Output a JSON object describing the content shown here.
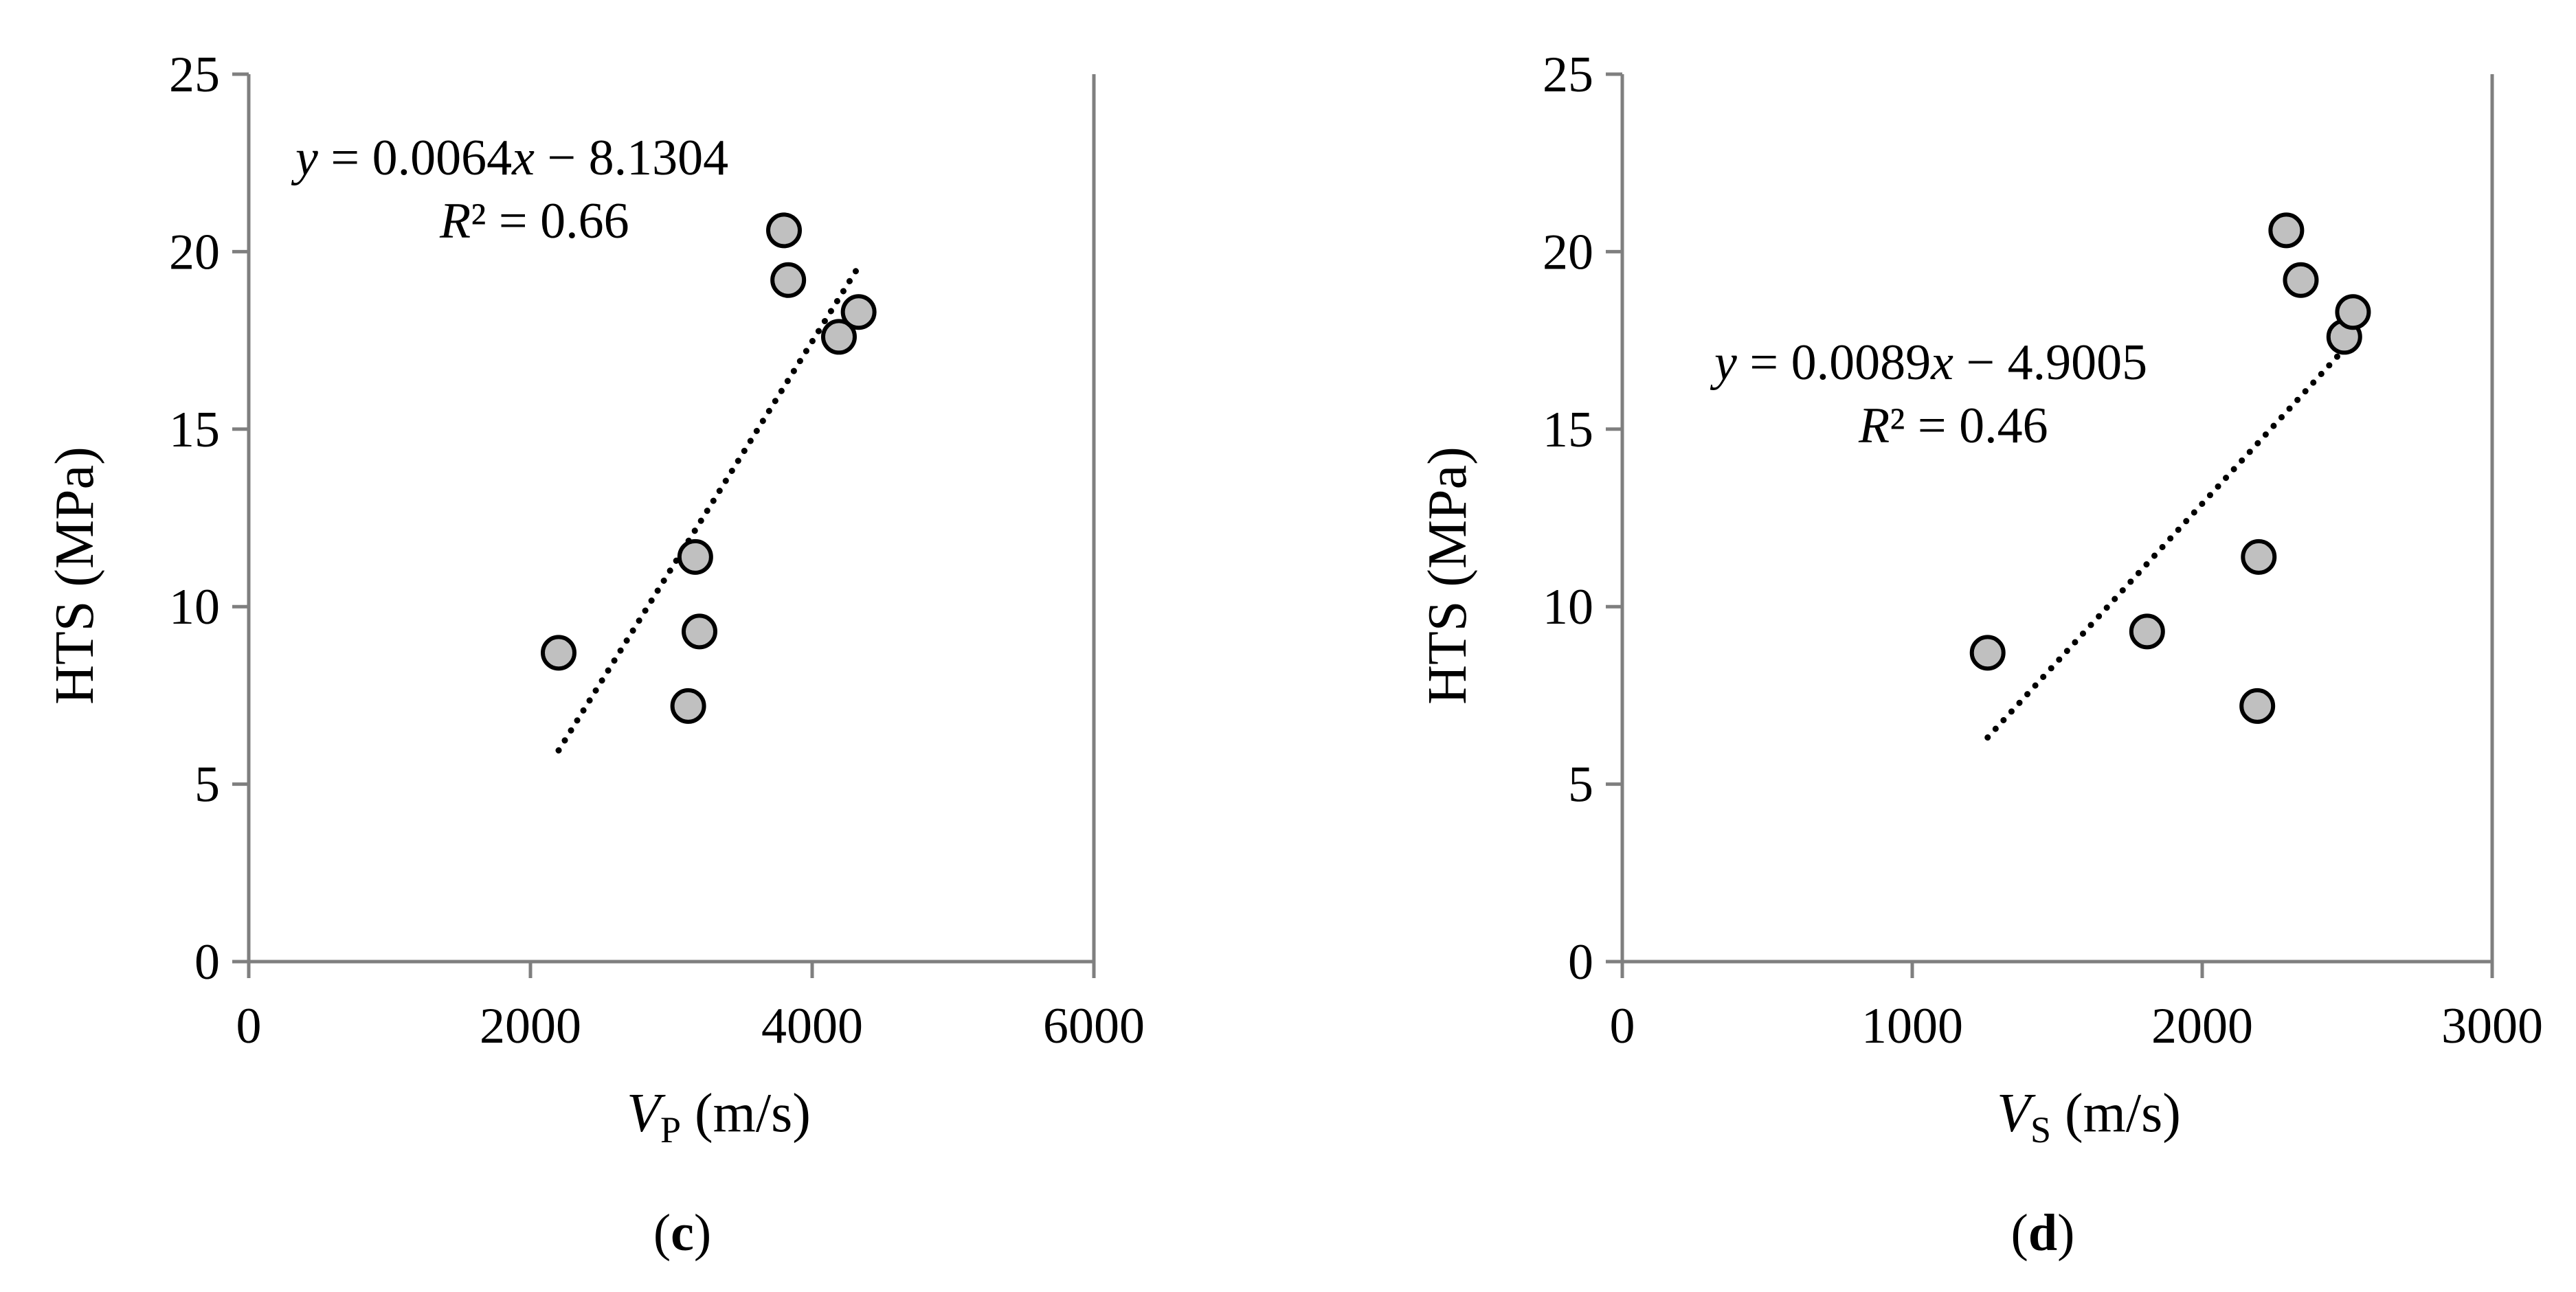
{
  "chart_data": [
    {
      "type": "scatter",
      "panel_label": "c",
      "xlabel": {
        "var": "V",
        "sub": "P",
        "unit": " (m/s)"
      },
      "ylabel": "HTS (MPa)",
      "xlim": [
        0,
        6000
      ],
      "ylim": [
        0,
        25
      ],
      "xticks": [
        "0",
        "2000",
        "4000",
        "6000"
      ],
      "yticks": [
        "0",
        "5",
        "10",
        "15",
        "20",
        "25"
      ],
      "x_tick_values": [
        0,
        2000,
        4000,
        6000
      ],
      "y_tick_values": [
        0,
        5,
        10,
        15,
        20,
        25
      ],
      "points": [
        {
          "x": 2200,
          "y": 8.7
        },
        {
          "x": 3120,
          "y": 7.2
        },
        {
          "x": 3170,
          "y": 11.4
        },
        {
          "x": 3200,
          "y": 9.3
        },
        {
          "x": 3800,
          "y": 20.6
        },
        {
          "x": 3830,
          "y": 19.2
        },
        {
          "x": 4190,
          "y": 17.6
        },
        {
          "x": 4330,
          "y": 18.3
        }
      ],
      "trendline": {
        "slope": 0.0064,
        "intercept": -8.1304,
        "x_range": [
          2200,
          4330
        ],
        "style": "dotted"
      },
      "equation": {
        "y_var": "y",
        "body": " = 0.0064",
        "x_var": "x",
        "tail": " − 8.1304"
      },
      "r2": {
        "r": "R",
        "body": "² = 0.66"
      },
      "grid": false,
      "marker_fill": "#c0c0c0",
      "marker_stroke": "#000000",
      "axis_color": "#7f7f7f"
    },
    {
      "type": "scatter",
      "panel_label": "d",
      "xlabel": {
        "var": "V",
        "sub": "S",
        "unit": " (m/s)"
      },
      "ylabel": "HTS (MPa)",
      "xlim": [
        0,
        3000
      ],
      "ylim": [
        0,
        25
      ],
      "xticks": [
        "0",
        "1000",
        "2000",
        "3000"
      ],
      "yticks": [
        "0",
        "5",
        "10",
        "15",
        "20",
        "25"
      ],
      "x_tick_values": [
        0,
        1000,
        2000,
        3000
      ],
      "y_tick_values": [
        0,
        5,
        10,
        15,
        20,
        25
      ],
      "points": [
        {
          "x": 1260,
          "y": 8.7
        },
        {
          "x": 1810,
          "y": 9.3
        },
        {
          "x": 2190,
          "y": 7.2
        },
        {
          "x": 2195,
          "y": 11.4
        },
        {
          "x": 2290,
          "y": 20.6
        },
        {
          "x": 2340,
          "y": 19.2
        },
        {
          "x": 2490,
          "y": 17.6
        },
        {
          "x": 2520,
          "y": 18.3
        }
      ],
      "trendline": {
        "slope": 0.0089,
        "intercept": -4.9005,
        "x_range": [
          1260,
          2520
        ],
        "style": "dotted"
      },
      "equation": {
        "y_var": "y",
        "body": " = 0.0089",
        "x_var": "x",
        "tail": " − 4.9005"
      },
      "r2": {
        "r": "R",
        "body": "² = 0.46"
      },
      "grid": false,
      "marker_fill": "#c0c0c0",
      "marker_stroke": "#000000",
      "axis_color": "#7f7f7f"
    }
  ]
}
